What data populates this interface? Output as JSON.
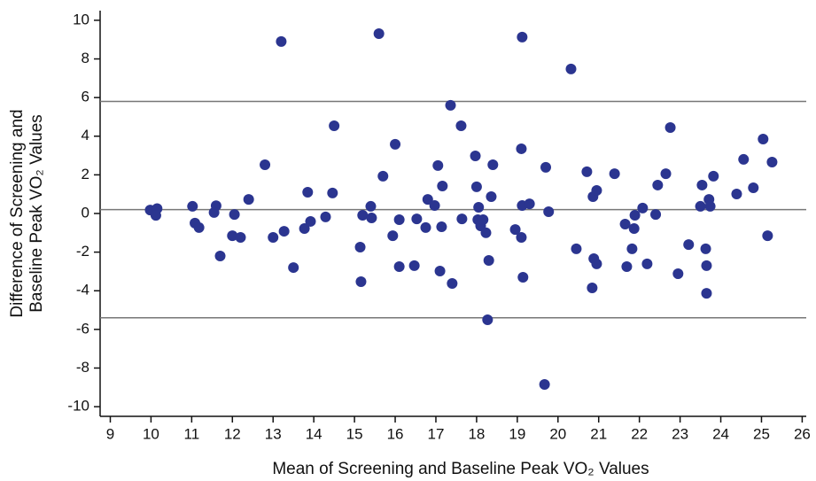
{
  "chart_data": {
    "type": "scatter",
    "x_label": "Mean of Screening and Baseline Peak VO₂ Values",
    "y_label": [
      "Difference of Screening and",
      "Baseline Peak VO₂ Values"
    ],
    "color": "#2b3590",
    "ref_line_color": "#777777",
    "ref_lines": [
      5.8,
      0.2,
      -5.4
    ],
    "xlim": [
      8.75,
      26.1
    ],
    "ylim": [
      -10.5,
      10.5
    ],
    "xticks": [
      9,
      10,
      11,
      12,
      13,
      14,
      15,
      16,
      17,
      18,
      19,
      20,
      21,
      22,
      23,
      24,
      25,
      26
    ],
    "yticks": [
      -10,
      -8,
      -6,
      -4,
      -2,
      0,
      2,
      4,
      6,
      8,
      10
    ],
    "x": [
      9.98,
      10.15,
      10.12,
      11.02,
      11.08,
      11.18,
      11.6,
      11.55,
      11.7,
      12.0,
      12.05,
      12.2,
      12.4,
      12.8,
      13.0,
      13.2,
      13.27,
      13.5,
      13.77,
      13.85,
      13.92,
      14.29,
      14.46,
      14.5,
      15.14,
      15.16,
      15.2,
      15.4,
      15.42,
      15.6,
      15.7,
      15.94,
      16.0,
      16.1,
      16.1,
      16.47,
      16.53,
      16.75,
      16.8,
      16.97,
      17.05,
      17.1,
      17.14,
      17.16,
      17.36,
      17.4,
      17.62,
      17.64,
      17.97,
      18.0,
      18.03,
      18.05,
      18.1,
      18.16,
      18.23,
      18.3,
      18.27,
      18.36,
      18.4,
      18.95,
      19.1,
      19.1,
      19.12,
      19.12,
      19.14,
      19.3,
      19.67,
      19.7,
      19.77,
      20.32,
      20.45,
      20.71,
      20.86,
      20.88,
      20.84,
      20.95,
      20.95,
      21.39,
      21.65,
      21.69,
      21.82,
      21.87,
      21.89,
      22.08,
      22.19,
      22.4,
      22.45,
      22.65,
      22.76,
      22.95,
      23.21,
      23.5,
      23.54,
      23.63,
      23.65,
      23.65,
      23.71,
      23.74,
      23.82,
      24.39,
      24.56,
      24.8,
      25.04,
      25.15,
      25.26
    ],
    "values": [
      0.18,
      0.25,
      -0.1,
      0.37,
      -0.5,
      -0.73,
      0.4,
      0.05,
      -2.2,
      -1.15,
      -0.05,
      -1.24,
      0.73,
      2.52,
      -1.24,
      8.9,
      -0.92,
      -2.8,
      -0.78,
      1.1,
      -0.41,
      -0.18,
      1.06,
      4.54,
      -1.74,
      -3.53,
      -0.09,
      0.37,
      -0.23,
      9.31,
      1.93,
      -1.15,
      3.58,
      -0.32,
      -2.75,
      -2.7,
      -0.28,
      -0.73,
      0.73,
      0.41,
      2.48,
      -2.98,
      -0.69,
      1.42,
      5.6,
      -3.62,
      4.54,
      -0.28,
      2.98,
      1.38,
      -0.32,
      0.32,
      -0.64,
      -0.32,
      -1.0,
      -2.43,
      -5.5,
      0.87,
      2.52,
      -0.83,
      3.35,
      -1.24,
      9.13,
      0.41,
      -3.3,
      0.5,
      -8.85,
      2.39,
      0.09,
      7.48,
      -1.83,
      2.16,
      0.87,
      -2.34,
      -3.85,
      1.19,
      -2.61,
      2.06,
      -0.55,
      -2.75,
      -1.83,
      -0.78,
      -0.09,
      0.28,
      -2.61,
      -0.05,
      1.47,
      2.06,
      4.45,
      -3.12,
      -1.61,
      0.37,
      1.47,
      -1.83,
      -2.7,
      -4.13,
      0.73,
      0.37,
      1.93,
      1.01,
      2.8,
      1.33,
      3.85,
      -1.15,
      2.66
    ]
  }
}
